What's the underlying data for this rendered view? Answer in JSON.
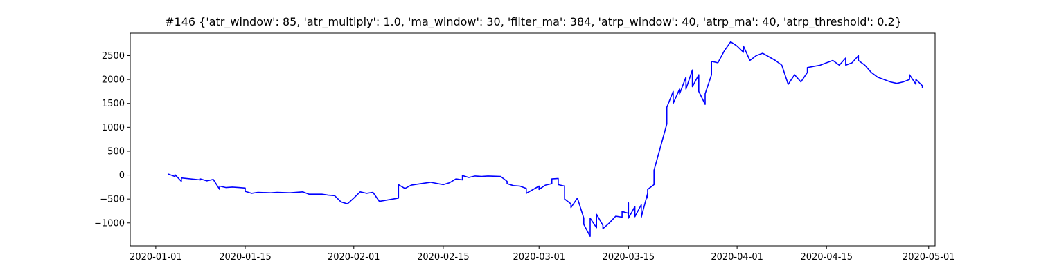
{
  "chart_data": {
    "type": "line",
    "title": "#146 {'atr_window': 85, 'atr_multiply': 1.0, 'ma_window': 30, 'filter_ma': 384, 'atrp_window': 40, 'atrp_ma': 40, 'atrp_threshold': 0.2}",
    "xlabel": "",
    "ylabel": "",
    "xlim": [
      "2019-12-28",
      "2020-05-02"
    ],
    "ylim": [
      -1480,
      2970
    ],
    "x_ticks": [
      "2020-01-01",
      "2020-01-15",
      "2020-02-01",
      "2020-02-15",
      "2020-03-01",
      "2020-03-15",
      "2020-04-01",
      "2020-04-15",
      "2020-05-01"
    ],
    "y_ticks": [
      -1000,
      -500,
      0,
      500,
      1000,
      1500,
      2000,
      2500
    ],
    "grid": false,
    "legend": "none",
    "series": [
      {
        "color": "#0000ff",
        "points": [
          [
            "2020-01-03",
            0
          ],
          [
            "2020-01-03",
            20
          ],
          [
            "2020-01-04",
            -30
          ],
          [
            "2020-01-04",
            10
          ],
          [
            "2020-01-05",
            -130
          ],
          [
            "2020-01-05",
            -60
          ],
          [
            "2020-01-08",
            -100
          ],
          [
            "2020-01-08",
            -80
          ],
          [
            "2020-01-09",
            -120
          ],
          [
            "2020-01-10",
            -90
          ],
          [
            "2020-01-11",
            -300
          ],
          [
            "2020-01-11",
            -230
          ],
          [
            "2020-01-12",
            -260
          ],
          [
            "2020-01-13",
            -250
          ],
          [
            "2020-01-14",
            -260
          ],
          [
            "2020-01-15",
            -270
          ],
          [
            "2020-01-15",
            -340
          ],
          [
            "2020-01-16",
            -380
          ],
          [
            "2020-01-17",
            -360
          ],
          [
            "2020-01-19",
            -370
          ],
          [
            "2020-01-20",
            -360
          ],
          [
            "2020-01-22",
            -370
          ],
          [
            "2020-01-24",
            -350
          ],
          [
            "2020-01-25",
            -400
          ],
          [
            "2020-01-27",
            -400
          ],
          [
            "2020-01-28",
            -420
          ],
          [
            "2020-01-29",
            -430
          ],
          [
            "2020-01-30",
            -560
          ],
          [
            "2020-01-31",
            -600
          ],
          [
            "2020-02-01",
            -480
          ],
          [
            "2020-02-02",
            -350
          ],
          [
            "2020-02-03",
            -380
          ],
          [
            "2020-02-04",
            -360
          ],
          [
            "2020-02-05",
            -550
          ],
          [
            "2020-02-08",
            -480
          ],
          [
            "2020-02-08",
            -200
          ],
          [
            "2020-02-09",
            -280
          ],
          [
            "2020-02-10",
            -210
          ],
          [
            "2020-02-12",
            -170
          ],
          [
            "2020-02-13",
            -150
          ],
          [
            "2020-02-15",
            -200
          ],
          [
            "2020-02-16",
            -160
          ],
          [
            "2020-02-17",
            -80
          ],
          [
            "2020-02-18",
            -100
          ],
          [
            "2020-02-18",
            -10
          ],
          [
            "2020-02-19",
            -50
          ],
          [
            "2020-02-20",
            -20
          ],
          [
            "2020-02-21",
            -30
          ],
          [
            "2020-02-22",
            -20
          ],
          [
            "2020-02-24",
            -30
          ],
          [
            "2020-02-25",
            -130
          ],
          [
            "2020-02-25",
            -180
          ],
          [
            "2020-02-26",
            -220
          ],
          [
            "2020-02-27",
            -230
          ],
          [
            "2020-02-28",
            -280
          ],
          [
            "2020-02-28",
            -380
          ],
          [
            "2020-03-01",
            -230
          ],
          [
            "2020-03-01",
            -300
          ],
          [
            "2020-03-02",
            -210
          ],
          [
            "2020-03-03",
            -180
          ],
          [
            "2020-03-03",
            -80
          ],
          [
            "2020-03-04",
            -70
          ],
          [
            "2020-03-04",
            -200
          ],
          [
            "2020-03-05",
            -230
          ],
          [
            "2020-03-05",
            -500
          ],
          [
            "2020-03-06",
            -600
          ],
          [
            "2020-03-06",
            -680
          ],
          [
            "2020-03-07",
            -480
          ],
          [
            "2020-03-08",
            -900
          ],
          [
            "2020-03-08",
            -1030
          ],
          [
            "2020-03-09",
            -1280
          ],
          [
            "2020-03-09",
            -900
          ],
          [
            "2020-03-10",
            -1100
          ],
          [
            "2020-03-10",
            -820
          ],
          [
            "2020-03-11",
            -1050
          ],
          [
            "2020-03-11",
            -1120
          ],
          [
            "2020-03-12",
            -1000
          ],
          [
            "2020-03-13",
            -860
          ],
          [
            "2020-03-14",
            -880
          ],
          [
            "2020-03-14",
            -760
          ],
          [
            "2020-03-15",
            -800
          ],
          [
            "2020-03-15",
            -580
          ],
          [
            "2020-03-15",
            -900
          ],
          [
            "2020-03-16",
            -660
          ],
          [
            "2020-03-16",
            -870
          ],
          [
            "2020-03-17",
            -620
          ],
          [
            "2020-03-17",
            -880
          ],
          [
            "2020-03-18",
            -380
          ],
          [
            "2020-03-18",
            -480
          ],
          [
            "2020-03-18",
            -300
          ],
          [
            "2020-03-19",
            -200
          ],
          [
            "2020-03-19",
            100
          ],
          [
            "2020-03-20",
            580
          ],
          [
            "2020-03-21",
            1070
          ],
          [
            "2020-03-21",
            1420
          ],
          [
            "2020-03-22",
            1750
          ],
          [
            "2020-03-22",
            1500
          ],
          [
            "2020-03-23",
            1800
          ],
          [
            "2020-03-23",
            1700
          ],
          [
            "2020-03-24",
            2050
          ],
          [
            "2020-03-24",
            1800
          ],
          [
            "2020-03-25",
            2200
          ],
          [
            "2020-03-25",
            1850
          ],
          [
            "2020-03-26",
            2100
          ],
          [
            "2020-03-26",
            1750
          ],
          [
            "2020-03-27",
            1480
          ],
          [
            "2020-03-27",
            1700
          ],
          [
            "2020-03-28",
            2100
          ],
          [
            "2020-03-28",
            2380
          ],
          [
            "2020-03-29",
            2350
          ],
          [
            "2020-03-30",
            2600
          ],
          [
            "2020-03-31",
            2790
          ],
          [
            "2020-04-01",
            2700
          ],
          [
            "2020-04-02",
            2570
          ],
          [
            "2020-04-02",
            2700
          ],
          [
            "2020-04-03",
            2400
          ],
          [
            "2020-04-04",
            2500
          ],
          [
            "2020-04-05",
            2550
          ],
          [
            "2020-04-07",
            2400
          ],
          [
            "2020-04-08",
            2300
          ],
          [
            "2020-04-09",
            1900
          ],
          [
            "2020-04-10",
            2100
          ],
          [
            "2020-04-11",
            1950
          ],
          [
            "2020-04-12",
            2150
          ],
          [
            "2020-04-12",
            2250
          ],
          [
            "2020-04-14",
            2300
          ],
          [
            "2020-04-15",
            2350
          ],
          [
            "2020-04-16",
            2400
          ],
          [
            "2020-04-17",
            2300
          ],
          [
            "2020-04-18",
            2450
          ],
          [
            "2020-04-18",
            2300
          ],
          [
            "2020-04-19",
            2350
          ],
          [
            "2020-04-20",
            2500
          ],
          [
            "2020-04-20",
            2400
          ],
          [
            "2020-04-21",
            2300
          ],
          [
            "2020-04-22",
            2150
          ],
          [
            "2020-04-23",
            2050
          ],
          [
            "2020-04-24",
            2000
          ],
          [
            "2020-04-25",
            1950
          ],
          [
            "2020-04-26",
            1920
          ],
          [
            "2020-04-27",
            1950
          ],
          [
            "2020-04-28",
            2000
          ],
          [
            "2020-04-28",
            2100
          ],
          [
            "2020-04-29",
            1900
          ],
          [
            "2020-04-29",
            2000
          ],
          [
            "2020-04-30",
            1870
          ],
          [
            "2020-04-30",
            1820
          ]
        ]
      }
    ]
  }
}
